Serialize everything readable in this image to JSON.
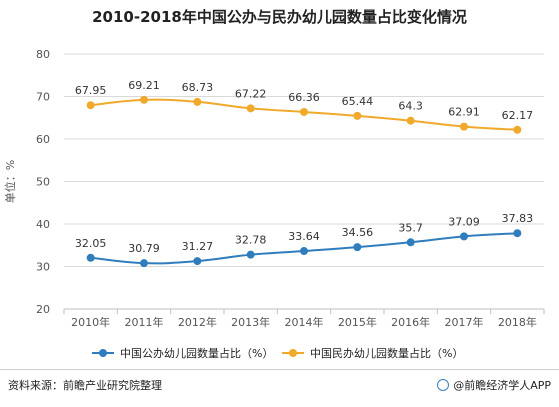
{
  "chart_data": {
    "type": "line",
    "title": "2010-2018年中国公办与民办幼儿园数量占比变化情况",
    "ylabel": "单位：%",
    "ylim": [
      20,
      80
    ],
    "yticks": [
      20,
      30,
      40,
      50,
      60,
      70,
      80
    ],
    "categories": [
      "2010年",
      "2011年",
      "2012年",
      "2013年",
      "2014年",
      "2015年",
      "2016年",
      "2017年",
      "2018年"
    ],
    "grid": true,
    "legend_position": "bottom",
    "series": [
      {
        "name": "中国公办幼儿园数量占比（%）",
        "color": "#2f7dbd",
        "values": [
          32.05,
          30.79,
          31.27,
          32.78,
          33.64,
          34.56,
          35.7,
          37.09,
          37.83
        ],
        "labels": [
          "32.05",
          "30.79",
          "31.27",
          "32.78",
          "33.64",
          "34.56",
          "35.7",
          "37.09",
          "37.83"
        ]
      },
      {
        "name": "中国民办幼儿园数量占比（%）",
        "color": "#f0a92a",
        "values": [
          67.95,
          69.21,
          68.73,
          67.22,
          66.36,
          65.44,
          64.3,
          62.91,
          62.17
        ],
        "labels": [
          "67.95",
          "69.21",
          "68.73",
          "67.22",
          "66.36",
          "65.44",
          "64.3",
          "62.91",
          "62.17"
        ]
      }
    ]
  },
  "footer": {
    "source": "资料来源：前瞻产业研究院整理",
    "brand": "@前瞻经济学人APP"
  }
}
